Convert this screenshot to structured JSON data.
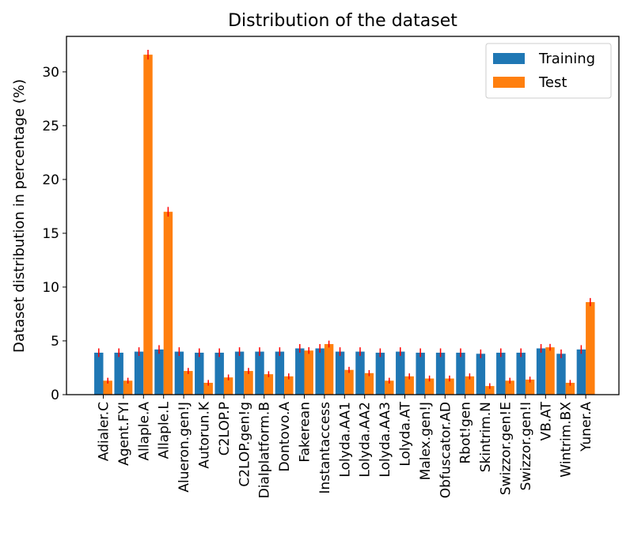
{
  "chart_data": {
    "type": "bar",
    "title": "Distribution of the dataset",
    "xlabel": "",
    "ylabel": "Dataset distribution in percentage (%)",
    "ylim": [
      0,
      33.3
    ],
    "yticks": [
      0,
      5,
      10,
      15,
      20,
      25,
      30
    ],
    "grid": false,
    "legend_position": "top-right",
    "categories": [
      "Adialer.C",
      "Agent.FYI",
      "Allaple.A",
      "Allaple.L",
      "Alueron.gen!J",
      "Autorun.K",
      "C2LOP.P",
      "C2LOP.gen!g",
      "Dialplatform.B",
      "Dontovo.A",
      "Fakerean",
      "Instantaccess",
      "Lolyda.AA1",
      "Lolyda.AA2",
      "Lolyda.AA3",
      "Lolyda.AT",
      "Malex.gen!J",
      "Obfuscator.AD",
      "Rbot!gen",
      "Skintrim.N",
      "Swizzor.gen!E",
      "Swizzor.gen!I",
      "VB.AT",
      "Wintrim.BX",
      "Yuner.A"
    ],
    "series": [
      {
        "name": "Training",
        "color": "#1f77b4",
        "values": [
          3.9,
          3.9,
          4.0,
          4.2,
          4.0,
          3.9,
          3.9,
          4.0,
          4.0,
          4.0,
          4.3,
          4.3,
          4.0,
          4.0,
          3.9,
          4.0,
          3.9,
          3.9,
          3.9,
          3.8,
          3.9,
          3.9,
          4.3,
          3.8,
          4.2
        ],
        "errors": [
          0.4,
          0.4,
          0.4,
          0.4,
          0.4,
          0.4,
          0.4,
          0.4,
          0.4,
          0.4,
          0.4,
          0.4,
          0.4,
          0.4,
          0.4,
          0.4,
          0.4,
          0.4,
          0.4,
          0.4,
          0.4,
          0.4,
          0.4,
          0.4,
          0.4
        ]
      },
      {
        "name": "Test",
        "color": "#ff7f0e",
        "values": [
          1.3,
          1.3,
          31.6,
          17.0,
          2.2,
          1.1,
          1.6,
          2.2,
          1.9,
          1.7,
          4.1,
          4.7,
          2.3,
          2.0,
          1.3,
          1.7,
          1.5,
          1.5,
          1.7,
          0.8,
          1.3,
          1.4,
          4.4,
          1.1,
          8.6
        ]
      }
    ],
    "error_color": "#ff0000"
  }
}
